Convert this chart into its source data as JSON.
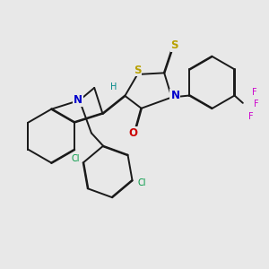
{
  "bg_color": "#e8e8e8",
  "bond_color": "#1a1a1a",
  "bond_width": 1.4,
  "dbo": 0.012,
  "atom_colors": {
    "S": "#b8a000",
    "N": "#0000cc",
    "O": "#cc0000",
    "Cl": "#009944",
    "F": "#cc00cc",
    "H": "#008888"
  },
  "font_size": 7.5
}
